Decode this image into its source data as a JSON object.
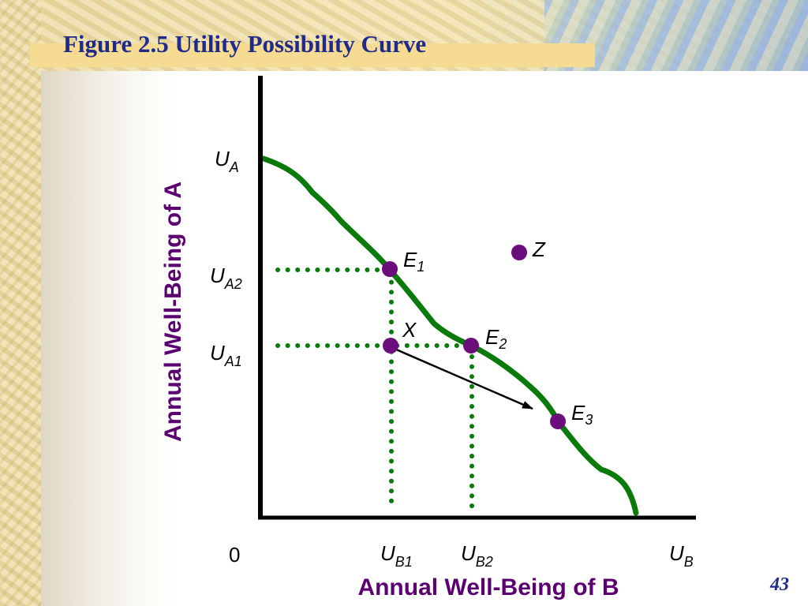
{
  "title": "Figure 2.5 Utility Possibility Curve",
  "page_number": "43",
  "colors": {
    "curve": "#0a7a0a",
    "points": "#6b0d7a",
    "guide": "#0a7a0a",
    "axis_title": "#5b0070",
    "title": "#1f2a8a"
  },
  "axes": {
    "x_title": "Annual Well-Being of B",
    "y_title": "Annual Well-Being of A",
    "origin": "0"
  },
  "y_ticks": [
    {
      "main": "U",
      "sub": "A"
    },
    {
      "main": "U",
      "sub": "A2"
    },
    {
      "main": "U",
      "sub": "A1"
    }
  ],
  "x_ticks": [
    {
      "main": "U",
      "sub": "B1"
    },
    {
      "main": "U",
      "sub": "B2"
    },
    {
      "main": "U",
      "sub": "B"
    }
  ],
  "points": [
    {
      "main": "E",
      "sub": "1"
    },
    {
      "main": "X",
      "sub": ""
    },
    {
      "main": "E",
      "sub": "2"
    },
    {
      "main": "E",
      "sub": "3"
    },
    {
      "main": "Z",
      "sub": ""
    }
  ]
}
